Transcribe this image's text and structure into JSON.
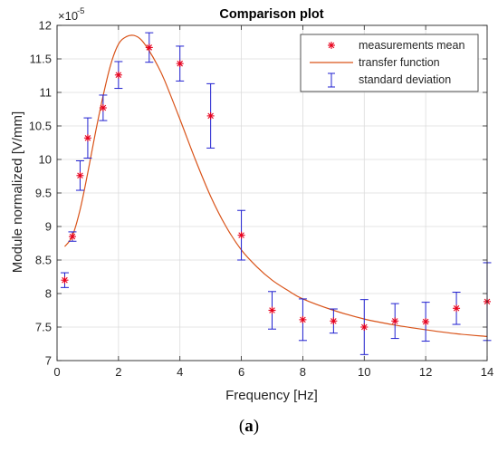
{
  "chart_data": {
    "type": "scatter",
    "title": "Comparison plot",
    "xlabel": "Frequency [Hz]",
    "ylabel": "Module normalized [V/mm]",
    "exponent_base": "×10",
    "exponent_power": "-5",
    "xlim": [
      0,
      14
    ],
    "ylim": [
      7,
      12
    ],
    "xticks": [
      0,
      2,
      4,
      6,
      8,
      10,
      12,
      14
    ],
    "yticks": [
      7,
      7.5,
      8,
      8.5,
      9,
      9.5,
      10,
      10.5,
      11,
      11.5,
      12
    ],
    "xtick_labels": [
      "0",
      "2",
      "4",
      "6",
      "8",
      "10",
      "12",
      "14"
    ],
    "ytick_labels": [
      "7",
      "7.5",
      "8",
      "8.5",
      "9",
      "9.5",
      "10",
      "10.5",
      "11",
      "11.5",
      "12"
    ],
    "grid": true,
    "legend_position": "top-right",
    "legend": [
      {
        "label": "measurements mean",
        "marker": "asterisk",
        "color": "#e8001c"
      },
      {
        "label": "transfer function",
        "marker": "line",
        "color": "#d95319"
      },
      {
        "label": "standard deviation",
        "marker": "errorbar",
        "color": "#2020d0"
      }
    ],
    "measurements": {
      "name": "measurements mean",
      "x": [
        0.25,
        0.5,
        0.75,
        1.0,
        1.5,
        2.0,
        3.0,
        4.0,
        5.0,
        6.0,
        7.0,
        8.0,
        9.0,
        10.0,
        11.0,
        12.0,
        13.0,
        14.0
      ],
      "mean": [
        8.2,
        8.85,
        9.76,
        10.32,
        10.77,
        11.26,
        11.67,
        11.43,
        10.65,
        8.87,
        7.75,
        7.61,
        7.59,
        7.5,
        7.59,
        7.58,
        7.78,
        7.88
      ],
      "std": [
        0.11,
        0.07,
        0.22,
        0.3,
        0.19,
        0.2,
        0.22,
        0.26,
        0.48,
        0.37,
        0.28,
        0.31,
        0.18,
        0.41,
        0.26,
        0.29,
        0.24,
        0.58
      ]
    },
    "transfer_function": {
      "name": "transfer function",
      "x": [
        0.25,
        0.5,
        0.75,
        1.0,
        1.25,
        1.5,
        1.75,
        2.0,
        2.25,
        2.5,
        2.75,
        3.0,
        3.25,
        3.5,
        4.0,
        4.5,
        5.0,
        5.5,
        6.0,
        6.5,
        7.0,
        7.5,
        8.0,
        9.0,
        10.0,
        11.0,
        12.0,
        13.0,
        14.0
      ],
      "y": [
        8.7,
        8.86,
        9.25,
        9.8,
        10.4,
        10.95,
        11.42,
        11.72,
        11.83,
        11.85,
        11.78,
        11.62,
        11.42,
        11.18,
        10.6,
        10.0,
        9.45,
        9.0,
        8.65,
        8.4,
        8.2,
        8.05,
        7.92,
        7.75,
        7.62,
        7.53,
        7.46,
        7.4,
        7.36
      ]
    }
  },
  "caption": {
    "open": "(",
    "letter": "a",
    "close": ")"
  },
  "colors": {
    "marker": "#e8001c",
    "curve": "#d95319",
    "errorbar": "#2020d0",
    "grid": "#dcdcdc",
    "axis": "#262626"
  }
}
